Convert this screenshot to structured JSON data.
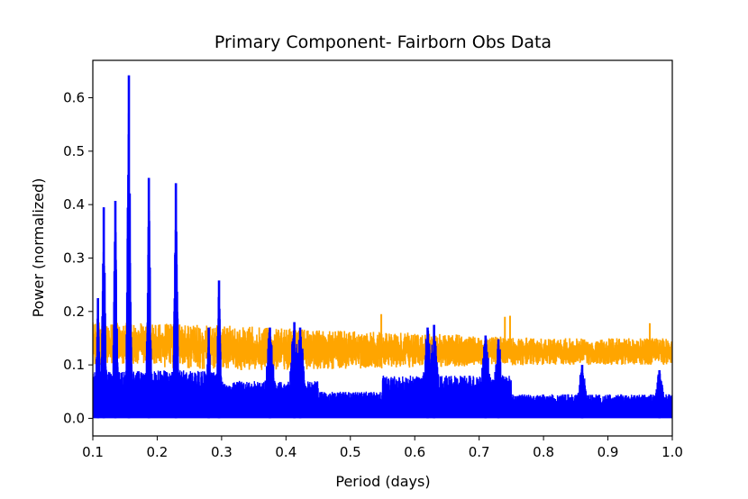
{
  "chart_data": {
    "type": "line",
    "title": "Primary Component- Fairborn Obs Data",
    "xlabel": "Period (days)",
    "ylabel": "Power (normalized)",
    "xlim": [
      0.1,
      1.0
    ],
    "ylim": [
      -0.033,
      0.67
    ],
    "xticks": [
      0.1,
      0.2,
      0.3,
      0.4,
      0.5,
      0.6,
      0.7,
      0.8,
      0.9,
      1.0
    ],
    "xtick_labels": [
      "0.1",
      "0.2",
      "0.3",
      "0.4",
      "0.5",
      "0.6",
      "0.7",
      "0.8",
      "0.9",
      "1.0"
    ],
    "yticks": [
      0.0,
      0.1,
      0.2,
      0.3,
      0.4,
      0.5,
      0.6
    ],
    "ytick_labels": [
      "0.0",
      "0.1",
      "0.2",
      "0.3",
      "0.4",
      "0.5",
      "0.6"
    ],
    "grid": false,
    "series": [
      {
        "color": "#ffa500",
        "style": "noise band",
        "band": {
          "x": [
            0.1,
            0.3,
            0.45,
            0.6,
            0.8,
            1.0
          ],
          "low": [
            0.1,
            0.09,
            0.09,
            0.095,
            0.1,
            0.1
          ],
          "high": [
            0.18,
            0.175,
            0.165,
            0.16,
            0.15,
            0.15
          ]
        },
        "spikes": [
          [
            0.548,
            0.195
          ],
          [
            0.748,
            0.192
          ],
          [
            0.74,
            0.19
          ],
          [
            0.965,
            0.178
          ]
        ]
      },
      {
        "color": "#0000ff",
        "style": "noise with peaks",
        "peaks": [
          [
            0.108,
            0.225
          ],
          [
            0.117,
            0.395
          ],
          [
            0.135,
            0.407
          ],
          [
            0.156,
            0.642
          ],
          [
            0.187,
            0.45
          ],
          [
            0.229,
            0.44
          ],
          [
            0.296,
            0.258
          ],
          [
            0.28,
            0.17
          ],
          [
            0.375,
            0.17
          ],
          [
            0.413,
            0.18
          ],
          [
            0.422,
            0.17
          ],
          [
            0.62,
            0.17
          ],
          [
            0.63,
            0.175
          ],
          [
            0.71,
            0.155
          ],
          [
            0.73,
            0.148
          ],
          [
            0.86,
            0.1
          ],
          [
            0.98,
            0.09
          ]
        ]
      }
    ]
  }
}
